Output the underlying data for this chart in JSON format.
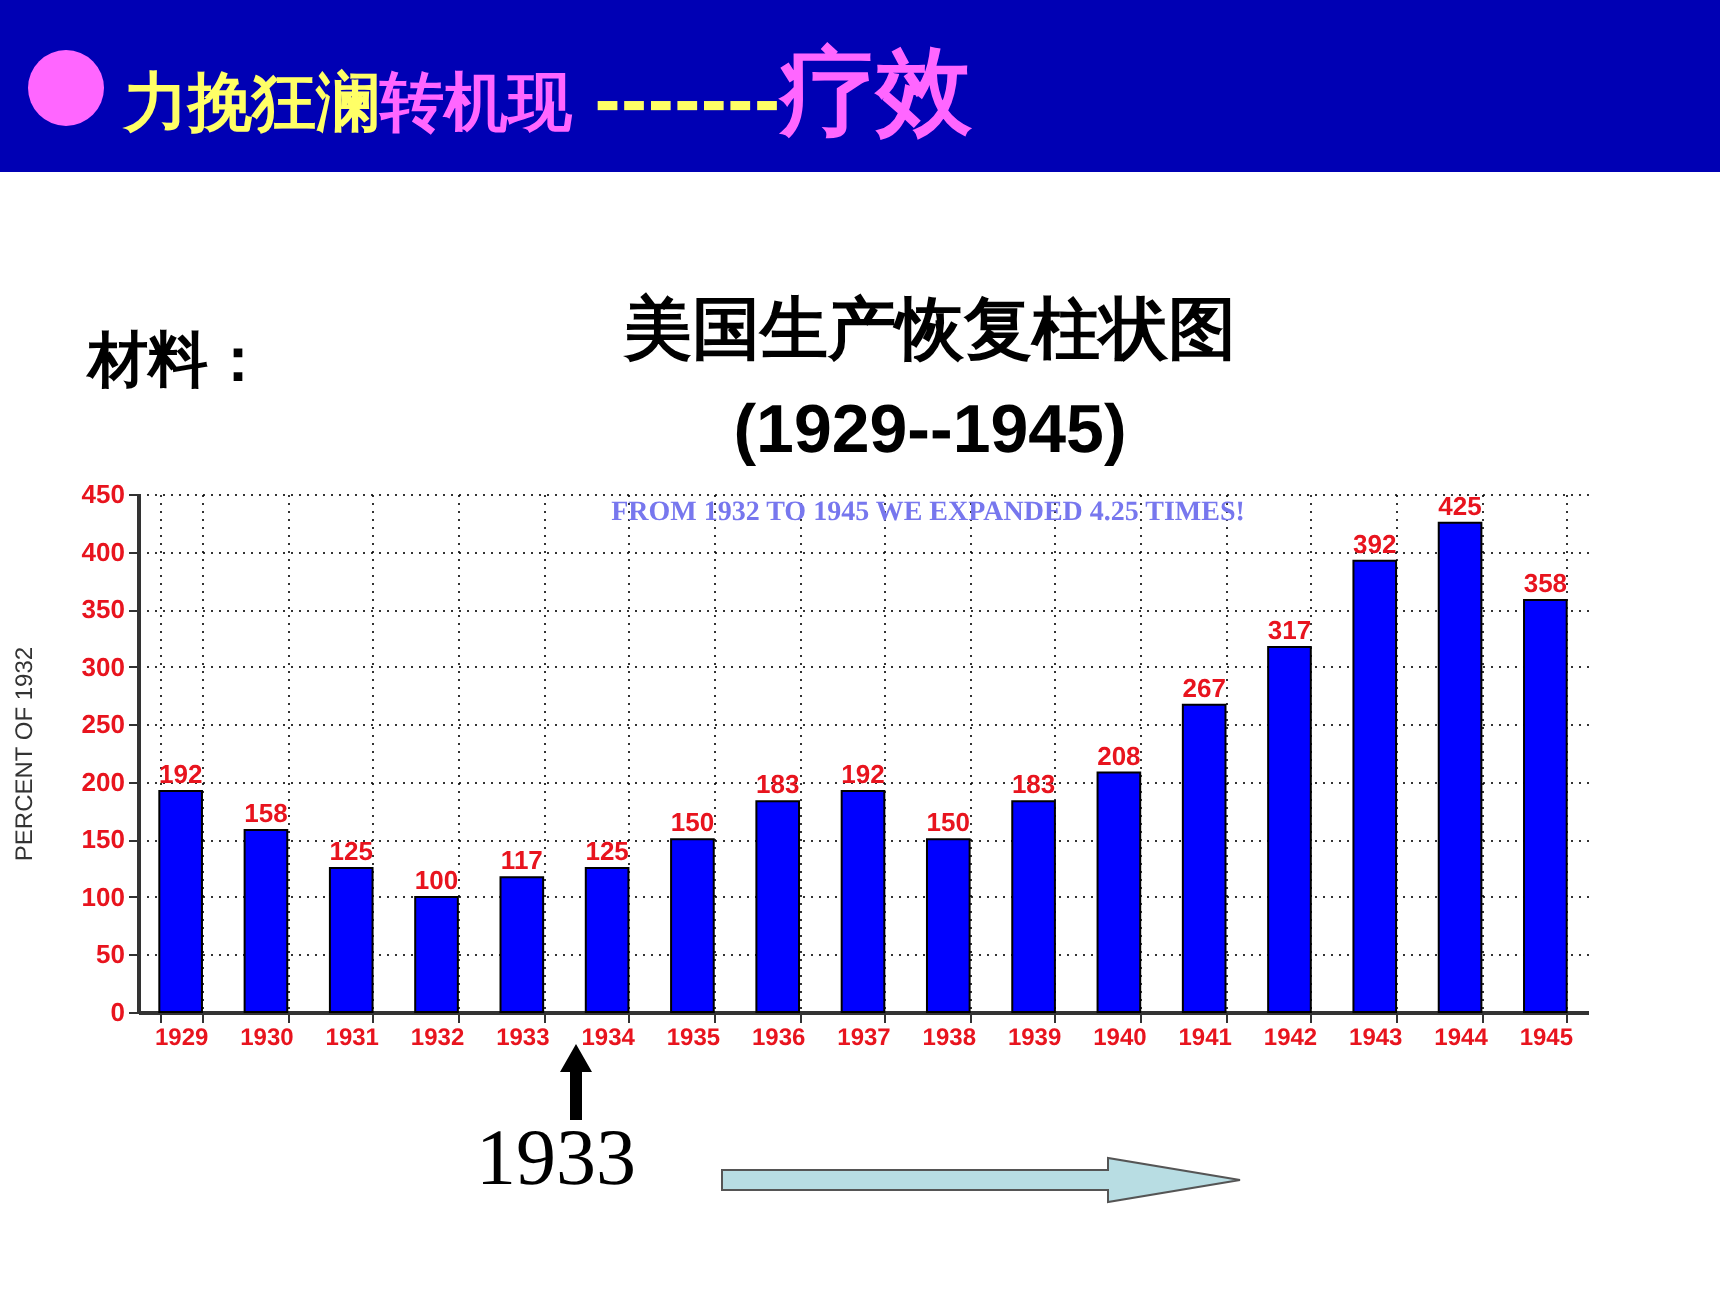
{
  "chart_data": {
    "type": "bar",
    "title": "美国生产恢复柱状图",
    "subtitle": "(1929--1945)",
    "ylabel": "PERCENT OF 1932",
    "annotations": [
      "力挽狂澜",
      "转机现",
      " -------",
      "疗效",
      "材料：",
      "FROM 1932 TO 1945 WE EXPANDED 4.25 TIMES!",
      "1933"
    ],
    "categories": [
      "1929",
      "1930",
      "1931",
      "1932",
      "1933",
      "1934",
      "1935",
      "1936",
      "1937",
      "1938",
      "1939",
      "1940",
      "1941",
      "1942",
      "1943",
      "1944",
      "1945"
    ],
    "values": [
      192,
      158,
      125,
      100,
      117,
      125,
      150,
      183,
      192,
      150,
      183,
      208,
      267,
      317,
      392,
      425,
      358
    ],
    "color": "#0000ff",
    "ylim": [
      0,
      450
    ],
    "yticks": [
      0,
      50,
      100,
      150,
      200,
      250,
      300,
      350,
      400,
      450
    ],
    "grid": true,
    "data_labels": true
  }
}
